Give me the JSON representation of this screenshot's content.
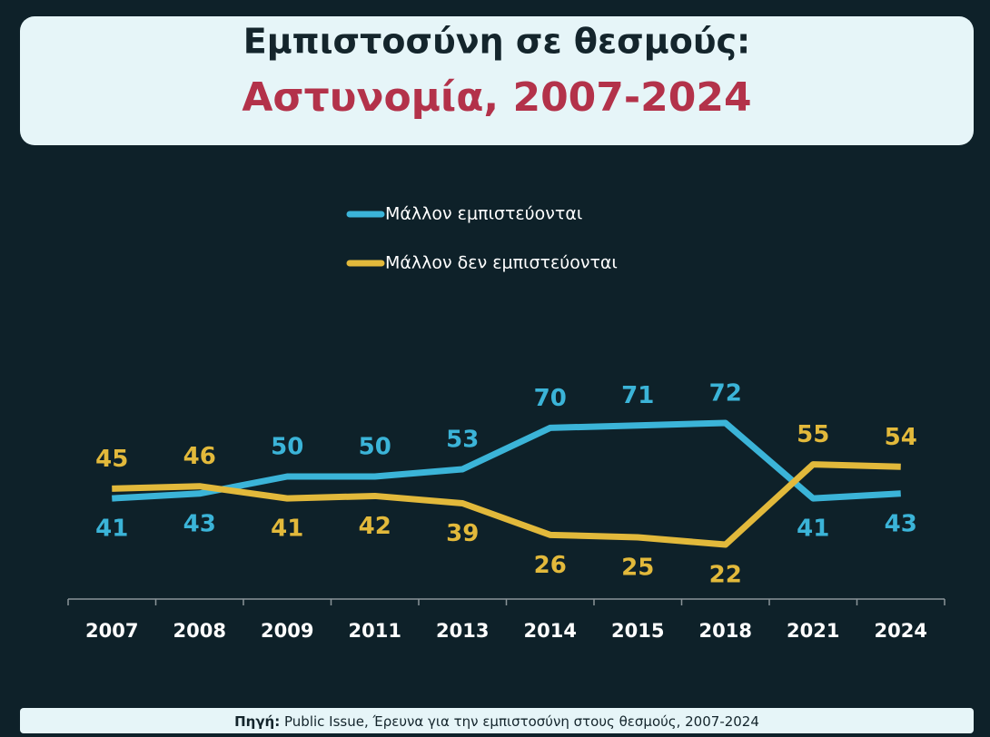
{
  "chart_data": {
    "type": "line",
    "title": "Εμπιστοσύνη σε θεσμούς:",
    "subtitle": "Αστυνομία, 2007-2024",
    "categories": [
      "2007",
      "2008",
      "2009",
      "2011",
      "2013",
      "2014",
      "2015",
      "2018",
      "2021",
      "2024"
    ],
    "series": [
      {
        "name": "Μάλλον εμπιστεύονται",
        "color": "#3bb4d8",
        "values": [
          41,
          43,
          50,
          50,
          53,
          70,
          71,
          72,
          41,
          43
        ]
      },
      {
        "name": "Μάλλον δεν εμπιστεύονται",
        "color": "#e2b93b",
        "values": [
          45,
          46,
          41,
          42,
          39,
          26,
          25,
          22,
          55,
          54
        ]
      }
    ],
    "ylim": [
      0,
      100
    ],
    "source_label": "Πηγή:",
    "source": "Public Issue, Έρευνα για την εμπιστοσύνη στους θεσμούς, 2007-2024"
  }
}
